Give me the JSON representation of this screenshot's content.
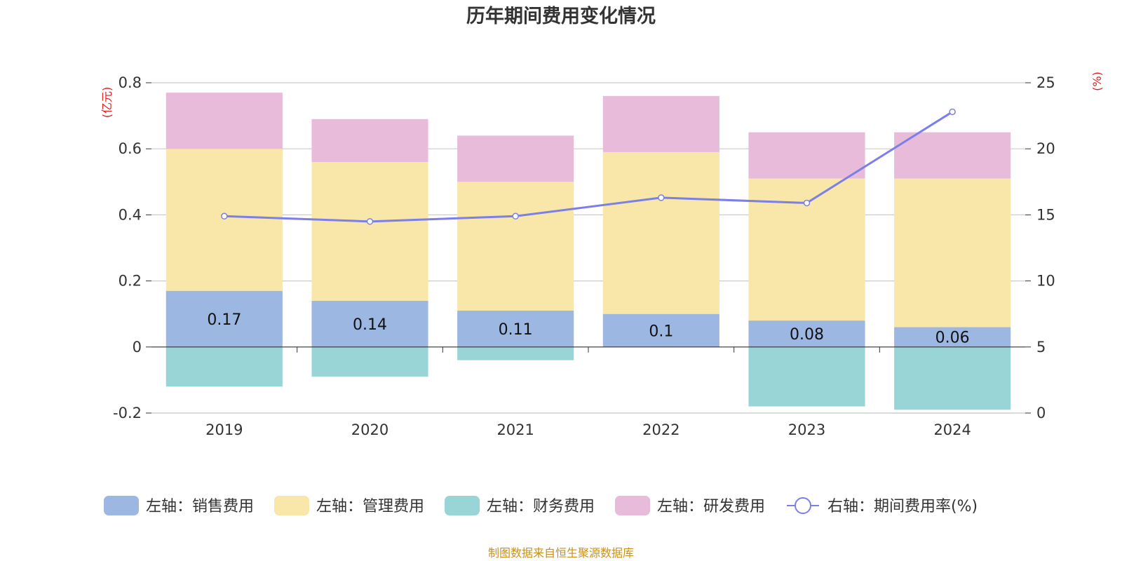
{
  "chart_data": {
    "type": "bar",
    "title": "历年期间费用变化情况",
    "categories": [
      "2019",
      "2020",
      "2021",
      "2022",
      "2023",
      "2024"
    ],
    "left_axis": {
      "unit": "(亿元)",
      "ylim": [
        -0.2,
        0.8
      ],
      "ticks": [
        "-0.2",
        "0",
        "0.2",
        "0.4",
        "0.6",
        "0.8"
      ]
    },
    "right_axis": {
      "unit": "(%)",
      "ylim": [
        0,
        25
      ],
      "ticks": [
        "0",
        "5",
        "10",
        "15",
        "20",
        "25"
      ]
    },
    "series": [
      {
        "name": "左轴：销售费用",
        "axis": "left",
        "kind": "bar",
        "color": "#9cb7e2",
        "values": [
          0.17,
          0.14,
          0.11,
          0.1,
          0.08,
          0.06
        ],
        "labels": [
          "0.17",
          "0.14",
          "0.11",
          "0.1",
          "0.08",
          "0.06"
        ]
      },
      {
        "name": "左轴：管理费用",
        "axis": "left",
        "kind": "bar",
        "color": "#f8e7a9",
        "values": [
          0.43,
          0.42,
          0.39,
          0.49,
          0.43,
          0.45
        ]
      },
      {
        "name": "左轴：财务费用",
        "axis": "left",
        "kind": "bar",
        "color": "#99d5d6",
        "values": [
          -0.12,
          -0.09,
          -0.04,
          0.0,
          -0.18,
          -0.19
        ]
      },
      {
        "name": "左轴：研发费用",
        "axis": "left",
        "kind": "bar",
        "color": "#e8bbdb",
        "values": [
          0.17,
          0.13,
          0.14,
          0.17,
          0.14,
          0.14
        ]
      },
      {
        "name": "右轴：期间费用率(%)",
        "axis": "right",
        "kind": "line",
        "color": "#7b7fe8",
        "values": [
          14.9,
          14.5,
          14.9,
          16.3,
          15.9,
          22.8
        ]
      }
    ],
    "grid": true,
    "legend_position": "bottom"
  },
  "source_note": "制图数据来自恒生聚源数据库"
}
